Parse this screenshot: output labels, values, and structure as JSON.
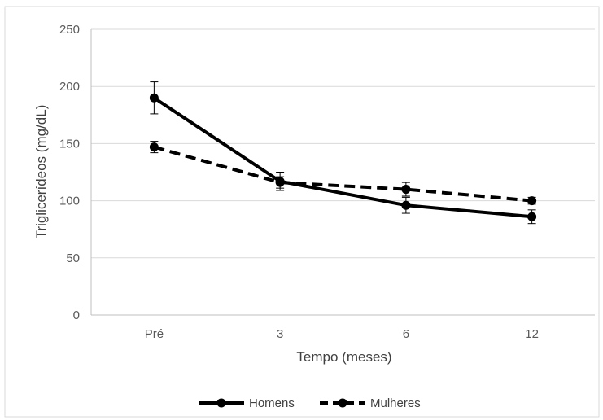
{
  "chart_data": {
    "type": "line",
    "title": "",
    "xlabel": "Tempo (meses)",
    "ylabel": "Triglicerídeos (mg/dL)",
    "categories": [
      "Pré",
      "3",
      "6",
      "12"
    ],
    "ylim": [
      0,
      250
    ],
    "yticks": [
      0,
      50,
      100,
      150,
      200,
      250
    ],
    "grid": true,
    "legend_position": "bottom",
    "series": [
      {
        "name": "Homens",
        "values": [
          190,
          117,
          96,
          86
        ],
        "error": [
          14,
          8,
          7,
          6
        ],
        "line_style": "solid",
        "color": "#000000"
      },
      {
        "name": "Mulheres",
        "values": [
          147,
          116,
          110,
          100
        ],
        "error": [
          5,
          5,
          6,
          3
        ],
        "line_style": "dashed",
        "color": "#000000"
      }
    ]
  }
}
